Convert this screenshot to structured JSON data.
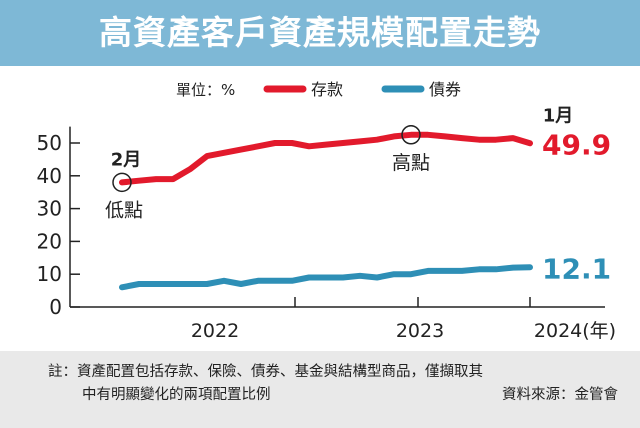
{
  "title": "高資產客戶資產規模配置走勢",
  "legend_unit": "單位：%",
  "notes": {
    "line1": "註：資產配置包括存款、保險、債券、基金與結構型商品，僅擷取其",
    "line2": "中有明顯變化的兩項配置比例",
    "source": "資料來源：金管會"
  },
  "chart_data": {
    "type": "line",
    "x_ticks": [
      "2022",
      "2023",
      "2024(年)"
    ],
    "y_ticks": [
      0,
      10,
      20,
      30,
      40,
      50
    ],
    "ylim": [
      0,
      55
    ],
    "grid": false,
    "legend_position": "top",
    "series": [
      {
        "name": "存款",
        "color": "#e21a2c",
        "values": [
          38,
          38.5,
          39,
          39,
          42,
          46,
          47,
          48,
          49,
          50,
          50,
          49,
          49.5,
          50,
          50.5,
          51,
          52,
          52.5,
          52.5,
          52,
          51.5,
          51,
          51,
          51.5,
          49.9
        ],
        "end_label": "49.9"
      },
      {
        "name": "債券",
        "color": "#2e8fb6",
        "values": [
          6,
          7,
          7,
          7,
          7,
          7,
          8,
          7,
          8,
          8,
          8,
          9,
          9,
          9,
          9.5,
          9,
          10,
          10,
          11,
          11,
          11,
          11.5,
          11.5,
          12,
          12.1
        ],
        "end_label": "12.1"
      }
    ],
    "annotations": [
      {
        "label": "2月",
        "note": "低點",
        "series": 0,
        "index": 0
      },
      {
        "label": "",
        "note": "高點",
        "series": 0,
        "index": 17
      },
      {
        "label": "1月",
        "note": "",
        "series": 0,
        "index": 24
      }
    ]
  }
}
